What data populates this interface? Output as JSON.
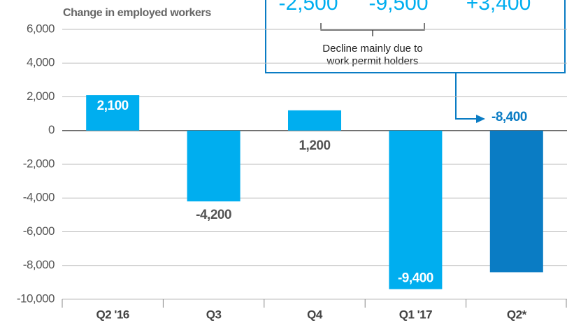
{
  "chart_data": {
    "type": "bar",
    "y_axis_label": "Change in employed workers",
    "categories": [
      "Q2 '16",
      "Q3",
      "Q4",
      "Q1 '17",
      "Q2*"
    ],
    "values": [
      2100,
      -4200,
      1200,
      -9400,
      -8400
    ],
    "value_labels": [
      "2,100",
      "-4,200",
      "1,200",
      "-9,400",
      "-8,400"
    ],
    "colors": [
      "#00aeef",
      "#00aeef",
      "#00aeef",
      "#00aeef",
      "#0a7cc4"
    ],
    "ylim": [
      -10000,
      6000
    ],
    "yticks": [
      {
        "value": 6000,
        "label": "6,000"
      },
      {
        "value": 4000,
        "label": "4,000"
      },
      {
        "value": 2000,
        "label": "2,000"
      },
      0,
      {
        "value": -2000,
        "label": "-2,000"
      },
      {
        "value": -4000,
        "label": "-4,000"
      },
      {
        "value": -6000,
        "label": "-6,000"
      },
      {
        "value": -8000,
        "label": "-8,000"
      },
      {
        "value": -10000,
        "label": "-10,000"
      }
    ],
    "grid": true,
    "annotation": {
      "values": [
        "-2,500",
        "-9,500",
        "+3,400"
      ],
      "note": [
        "Decline mainly due to",
        "work permit holders"
      ]
    }
  }
}
